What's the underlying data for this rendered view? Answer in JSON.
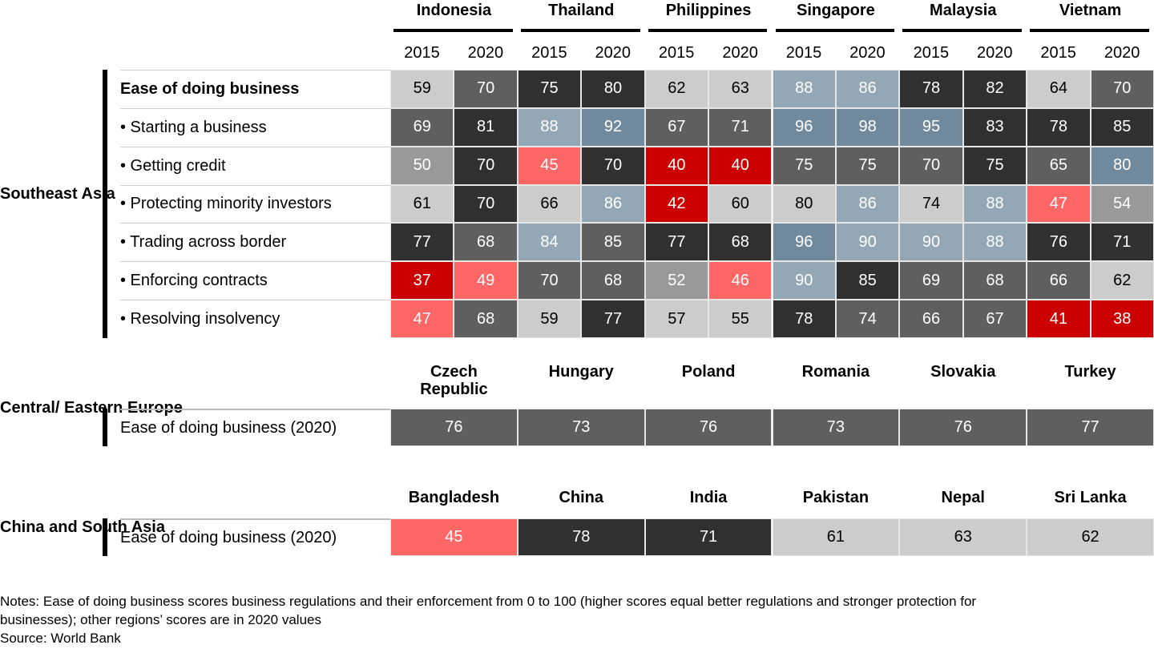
{
  "palette": {
    "L": "#cccccc",
    "G": "#999999",
    "M": "#5f5f5f",
    "D": "#303030",
    "B": "#94a7b5",
    "S": "#71899c",
    "P": "#ff6666",
    "R": "#cc0000"
  },
  "chart_data": {
    "type": "heatmap",
    "sections": [
      {
        "region": "Southeast Asia",
        "countries": [
          "Indonesia",
          "Thailand",
          "Philippines",
          "Singapore",
          "Malaysia",
          "Vietnam"
        ],
        "years": [
          "2015",
          "2020"
        ],
        "rows": [
          {
            "label": "Ease of doing business",
            "bold": true,
            "values": [
              59,
              70,
              75,
              80,
              62,
              63,
              88,
              86,
              78,
              82,
              64,
              70
            ],
            "colors": [
              "L",
              "M",
              "D",
              "D",
              "L",
              "L",
              "B",
              "B",
              "D",
              "D",
              "L",
              "M"
            ]
          },
          {
            "label": "• Starting a business",
            "values": [
              69,
              81,
              88,
              92,
              67,
              71,
              96,
              98,
              95,
              83,
              78,
              85
            ],
            "colors": [
              "M",
              "D",
              "B",
              "S",
              "M",
              "M",
              "S",
              "S",
              "S",
              "D",
              "D",
              "D"
            ]
          },
          {
            "label": "• Getting credit",
            "values": [
              50,
              70,
              45,
              70,
              40,
              40,
              75,
              75,
              70,
              75,
              65,
              80
            ],
            "colors": [
              "G",
              "D",
              "P",
              "D",
              "R",
              "R",
              "M",
              "M",
              "M",
              "D",
              "M",
              "S"
            ]
          },
          {
            "label": "• Protecting minority investors",
            "values": [
              61,
              70,
              66,
              86,
              42,
              60,
              80,
              86,
              74,
              88,
              47,
              54
            ],
            "colors": [
              "L",
              "D",
              "L",
              "B",
              "R",
              "L",
              "L",
              "B",
              "L",
              "B",
              "P",
              "G"
            ]
          },
          {
            "label": "• Trading across border",
            "values": [
              77,
              68,
              84,
              85,
              77,
              68,
              96,
              90,
              90,
              88,
              76,
              71
            ],
            "colors": [
              "D",
              "M",
              "B",
              "M",
              "D",
              "D",
              "S",
              "B",
              "B",
              "B",
              "D",
              "D"
            ]
          },
          {
            "label": "• Enforcing contracts",
            "values": [
              37,
              49,
              70,
              68,
              52,
              46,
              90,
              85,
              69,
              68,
              66,
              62
            ],
            "colors": [
              "R",
              "P",
              "M",
              "M",
              "G",
              "P",
              "B",
              "D",
              "M",
              "M",
              "M",
              "L"
            ]
          },
          {
            "label": "• Resolving insolvency",
            "values": [
              47,
              68,
              59,
              77,
              57,
              55,
              78,
              74,
              66,
              67,
              41,
              38
            ],
            "colors": [
              "P",
              "M",
              "L",
              "D",
              "L",
              "L",
              "D",
              "M",
              "M",
              "M",
              "R",
              "R"
            ]
          }
        ]
      },
      {
        "region": "Central/ Eastern Europe",
        "countries": [
          "Czech Republic",
          "Hungary",
          "Poland",
          "Romania",
          "Slovakia",
          "Turkey"
        ],
        "rows": [
          {
            "label": "Ease of doing business (2020)",
            "values": [
              76,
              73,
              76,
              73,
              76,
              77
            ],
            "colors": [
              "M",
              "M",
              "M",
              "M",
              "M",
              "M"
            ]
          }
        ]
      },
      {
        "region": "China and South Asia",
        "countries": [
          "Bangladesh",
          "China",
          "India",
          "Pakistan",
          "Nepal",
          "Sri Lanka"
        ],
        "rows": [
          {
            "label": "Ease of doing business (2020)",
            "values": [
              45,
              78,
              71,
              61,
              63,
              62
            ],
            "colors": [
              "P",
              "D",
              "D",
              "L",
              "L",
              "L"
            ]
          }
        ]
      }
    ]
  },
  "notes": {
    "line1": "Notes: Ease of doing business scores business regulations and their enforcement from 0 to 100 (higher scores equal better regulations and stronger protection for",
    "line2": "businesses); other regions’ scores are in 2020 values",
    "source": "Source: World Bank"
  }
}
